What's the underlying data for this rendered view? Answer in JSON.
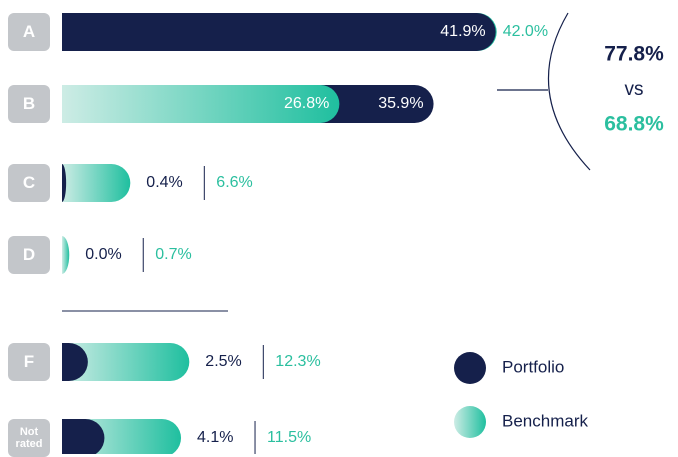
{
  "chart_data": {
    "type": "bar",
    "orientation": "horizontal",
    "categories": [
      "A",
      "B",
      "C",
      "D",
      "F",
      "Not rated"
    ],
    "series": [
      {
        "name": "Portfolio",
        "color": "#15204b",
        "values": [
          41.9,
          35.9,
          0.4,
          0.0,
          2.5,
          4.1
        ],
        "value_labels": [
          "41.9%",
          "35.9%",
          "0.4%",
          "0.0%",
          "2.5%",
          "4.1%"
        ]
      },
      {
        "name": "Benchmark",
        "color": "#1fbf9f",
        "values": [
          42.0,
          26.8,
          6.6,
          0.7,
          12.3,
          11.5
        ],
        "value_labels": [
          "42.0%",
          "26.8%",
          "6.6%",
          "0.7%",
          "12.3%",
          "11.5%"
        ]
      }
    ],
    "summary": {
      "portfolio_total": "77.8%",
      "vs": "vs",
      "benchmark_total": "68.8%"
    }
  }
}
